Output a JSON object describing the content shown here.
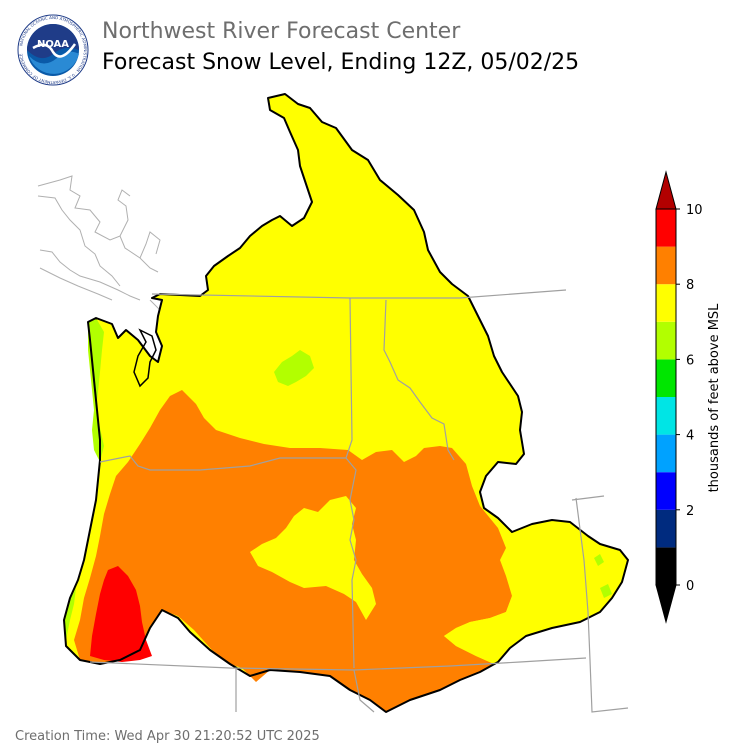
{
  "header": {
    "org_title": "Northwest River Forecast Center",
    "map_title": "Forecast Snow Level, Ending 12Z, 05/02/25",
    "logo_text": "NOAA",
    "logo_ring_text": "NATIONAL OCEANIC AND ATMOSPHERIC ADMINISTRATION · U.S. DEPARTMENT OF COMMERCE"
  },
  "legend": {
    "label": "thousands of feet above MSL",
    "ticks": [
      "0",
      "2",
      "4",
      "6",
      "8",
      "10"
    ],
    "bins": [
      {
        "range": "0-1",
        "color": "#000000"
      },
      {
        "range": "1-2",
        "color": "#002b7f"
      },
      {
        "range": "2-3",
        "color": "#0000ff"
      },
      {
        "range": "3-4",
        "color": "#00a2ff"
      },
      {
        "range": "4-5",
        "color": "#00e5e5"
      },
      {
        "range": "5-6",
        "color": "#00e600"
      },
      {
        "range": "6-7",
        "color": "#b2ff00"
      },
      {
        "range": "7-8",
        "color": "#ffff00"
      },
      {
        "range": "8-9",
        "color": "#ff8000"
      },
      {
        "range": "9-10",
        "color": "#ff0000"
      }
    ],
    "over_color": "#b20000",
    "under_color": "#000000"
  },
  "map": {
    "dominant_levels": [
      {
        "area": "northern basin",
        "level": "7-8",
        "color": "#ffff00"
      },
      {
        "area": "central/southern basin",
        "level": "8-9",
        "color": "#ff8000"
      },
      {
        "area": "southwest Oregon",
        "level": "9-10",
        "color": "#ff0000"
      },
      {
        "area": "coast and small patches",
        "level": "6-7",
        "color": "#b2ff00"
      }
    ]
  },
  "footer": {
    "creation_time": "Creation Time: Wed Apr 30 21:20:52 UTC 2025"
  }
}
